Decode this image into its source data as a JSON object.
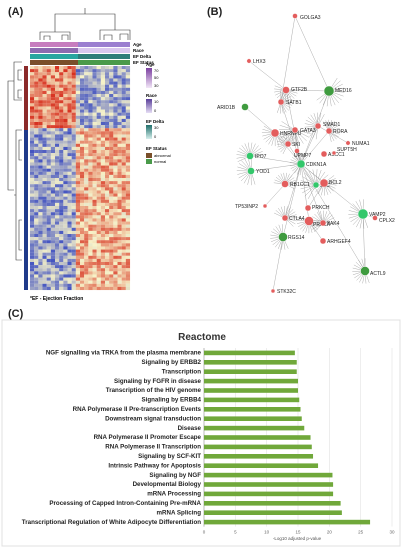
{
  "panels": {
    "a": "(A)",
    "b": "(B)",
    "c": "(C)"
  },
  "heatmap": {
    "annotation_labels": [
      "Age",
      "Race",
      "EF Delta",
      "EF Status"
    ],
    "legend": [
      {
        "title": "Age",
        "ticks": [
          "70",
          "50",
          "30"
        ]
      },
      {
        "title": "Race",
        "ticks": [
          "10",
          "0"
        ]
      },
      {
        "title": "EF Delta",
        "ticks": [
          "30",
          "0"
        ]
      },
      {
        "title": "EF Status",
        "ticks": [
          "abnormal",
          "normal"
        ]
      }
    ],
    "color_scale_ticks": [
      "2",
      "1",
      "0",
      "-1",
      "-2"
    ],
    "footnote": "*EF - Ejection Fraction",
    "colors": {
      "low": "#3b4cc0",
      "mid": "#f7f3c8",
      "high": "#d7301f"
    }
  },
  "network": {
    "nodes": [
      {
        "label": "GOLGA3",
        "color": "#e35d5d"
      },
      {
        "label": "LHX3",
        "color": "#e35d5d"
      },
      {
        "label": "GTF2B",
        "color": "#e35d5d"
      },
      {
        "label": "SATB1",
        "color": "#e35d5d"
      },
      {
        "label": "MED16",
        "color": "#3f9b3f"
      },
      {
        "label": "ARID1B",
        "color": "#3f9b3f"
      },
      {
        "label": "HNRNPU",
        "color": "#e35d5d"
      },
      {
        "label": "GATA3",
        "color": "#e35d5d"
      },
      {
        "label": "SMAD1",
        "color": "#e35d5d"
      },
      {
        "label": "RORA",
        "color": "#e35d5d"
      },
      {
        "label": "NUMA1",
        "color": "#e35d5d"
      },
      {
        "label": "IPO7",
        "color": "#33c76b"
      },
      {
        "label": "SKI",
        "color": "#e35d5d"
      },
      {
        "label": "UPMP7",
        "color": "#e35d5d"
      },
      {
        "label": "ASCC1",
        "color": "#e35d5d"
      },
      {
        "label": "SUPT5H",
        "color": "#e35d5d"
      },
      {
        "label": "YOD1",
        "color": "#33c76b"
      },
      {
        "label": "CDKN1A",
        "color": "#33c76b"
      },
      {
        "label": "RB1CC1",
        "color": "#e35d5d"
      },
      {
        "label": "SLC",
        "color": "#33c76b"
      },
      {
        "label": "BCL2",
        "color": "#e35d5d"
      },
      {
        "label": "TP53INP2",
        "color": "#e35d5d"
      },
      {
        "label": "PRKCH",
        "color": "#e35d5d"
      },
      {
        "label": "CTLA4",
        "color": "#e35d5d"
      },
      {
        "label": "PRKCA",
        "color": "#e35d5d"
      },
      {
        "label": "PAK4",
        "color": "#e35d5d"
      },
      {
        "label": "VAMP2",
        "color": "#33c76b"
      },
      {
        "label": "CPLX2",
        "color": "#e35d5d"
      },
      {
        "label": "RGS14",
        "color": "#3f9b3f"
      },
      {
        "label": "ARHGEF4",
        "color": "#e35d5d"
      },
      {
        "label": "ACTL9",
        "color": "#3f9b3f"
      },
      {
        "label": "STK32C",
        "color": "#e35d5d"
      }
    ]
  },
  "chart_data": {
    "type": "bar",
    "title": "Reactome",
    "xlabel": "-Log10 adjusted p-value",
    "xlim": [
      0,
      30
    ],
    "xticks": [
      0,
      5,
      10,
      15,
      20,
      25,
      30
    ],
    "grid": true,
    "bar_color": "#70a83a",
    "categories": [
      "NGF signalling via TRKA from the plasma membrane",
      "Signaling by ERBB2",
      "Transcription",
      "Signaling by FGFR in disease",
      "Transcription of the HIV genome",
      "Signaling by ERBB4",
      "RNA Polymerase II Pre-transcription Events",
      "Downstream signal transduction",
      "Disease",
      "RNA Polymerase II Promoter Escape",
      "RNA Polymerase II Transcription",
      "Signaling by SCF-KIT",
      "Intrinsic Pathway for Apoptosis",
      "Signaling by NGF",
      "Developmental Biology",
      "mRNA Processing",
      "Processing of Capped Intron-Containing Pre-mRNA",
      "mRNA Splicing",
      "Transcriptional Regulation of White Adipocyte Differentiation"
    ],
    "values": [
      14.5,
      14.8,
      14.8,
      15.0,
      15.0,
      15.2,
      15.4,
      15.6,
      16.0,
      17.0,
      17.2,
      17.4,
      18.2,
      20.5,
      20.6,
      20.6,
      21.8,
      22.0,
      26.5
    ]
  }
}
